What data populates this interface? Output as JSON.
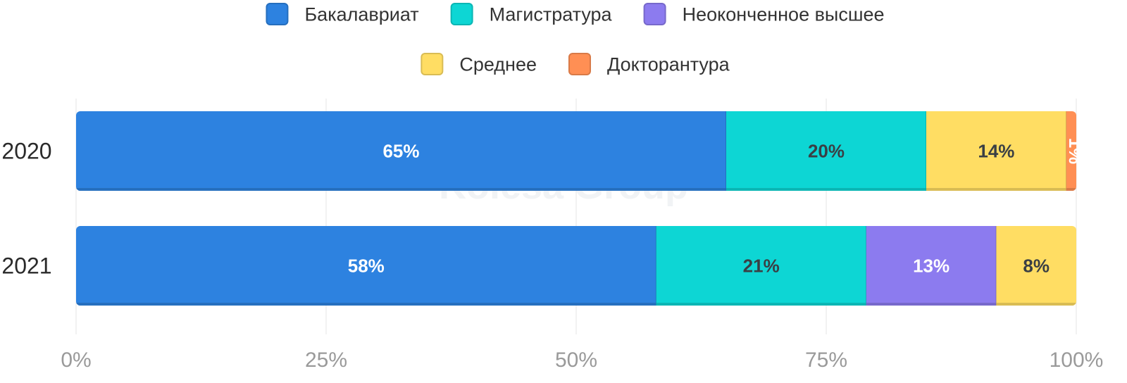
{
  "chart_data": {
    "type": "bar",
    "orientation": "horizontal",
    "stacked": true,
    "normalized": true,
    "categories": [
      "2020",
      "2021"
    ],
    "series": [
      {
        "name": "Бакалавриат",
        "color": "#2d82e0",
        "values": [
          65,
          58
        ],
        "labels": [
          "65%",
          "58%"
        ]
      },
      {
        "name": "Магистратура",
        "color": "#0dd6d4",
        "values": [
          20,
          21
        ],
        "labels": [
          "20%",
          "21%"
        ]
      },
      {
        "name": "Неоконченное высшее",
        "color": "#8c7bef",
        "values": [
          0,
          13
        ],
        "labels": [
          "",
          "13%"
        ]
      },
      {
        "name": "Среднее",
        "color": "#ffdd63",
        "values": [
          14,
          8
        ],
        "labels": [
          "14%",
          "8%"
        ]
      },
      {
        "name": "Докторантура",
        "color": "#ff8f54",
        "values": [
          1,
          0
        ],
        "labels": [
          "1%",
          ""
        ]
      }
    ],
    "xlim": [
      0,
      100
    ],
    "x_ticks": [
      "0%",
      "25%",
      "50%",
      "75%",
      "100%"
    ],
    "grid": true,
    "legend_position": "top-center",
    "watermark": "Kolesa Group"
  }
}
